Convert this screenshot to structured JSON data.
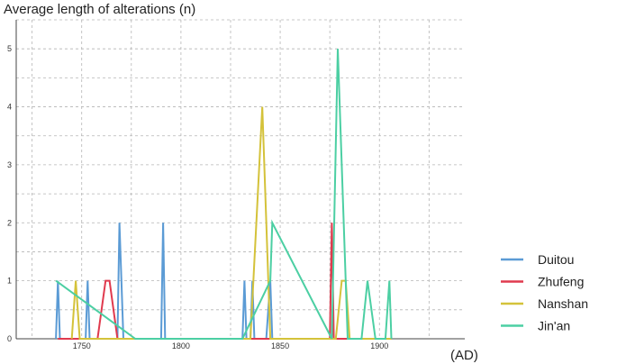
{
  "chart_data": {
    "type": "line",
    "title": "",
    "ylabel": "Average length of alterations  (n)",
    "xlabel": "(AD)",
    "xlim": [
      1717,
      1943
    ],
    "ylim": [
      0,
      5.5
    ],
    "x_ticks": [
      1750,
      1800,
      1850,
      1900
    ],
    "y_ticks": [
      0,
      1,
      2,
      3,
      4,
      5
    ],
    "grid": true,
    "legend_position": "right",
    "series": [
      {
        "name": "Duitou",
        "color": "#5b9bd5",
        "points": [
          [
            1737,
            0
          ],
          [
            1738,
            1
          ],
          [
            1739,
            0
          ],
          [
            1752,
            0
          ],
          [
            1753,
            1
          ],
          [
            1754,
            0
          ],
          [
            1768,
            0
          ],
          [
            1769,
            2
          ],
          [
            1771,
            0
          ],
          [
            1790,
            0
          ],
          [
            1791,
            2
          ],
          [
            1792,
            0
          ],
          [
            1831,
            0
          ],
          [
            1832,
            1
          ],
          [
            1833,
            0
          ],
          [
            1835,
            0
          ],
          [
            1836,
            1
          ],
          [
            1837,
            0
          ],
          [
            1843,
            0
          ],
          [
            1845,
            1
          ],
          [
            1846,
            0
          ],
          [
            1870,
            0
          ]
        ]
      },
      {
        "name": "Zhufeng",
        "color": "#e03a4e",
        "points": [
          [
            1738,
            0
          ],
          [
            1758,
            0
          ],
          [
            1762,
            1
          ],
          [
            1764,
            1
          ],
          [
            1768,
            0
          ],
          [
            1873,
            0
          ],
          [
            1875,
            0
          ],
          [
            1876,
            2
          ],
          [
            1877,
            0
          ],
          [
            1900,
            0
          ]
        ]
      },
      {
        "name": "Nanshan",
        "color": "#d4c23a",
        "points": [
          [
            1745,
            0
          ],
          [
            1747,
            1
          ],
          [
            1749,
            0
          ],
          [
            1835,
            0
          ],
          [
            1841,
            4
          ],
          [
            1845,
            0
          ],
          [
            1878,
            0
          ],
          [
            1881,
            1
          ],
          [
            1883,
            1
          ],
          [
            1885,
            0
          ],
          [
            1906,
            0
          ]
        ]
      },
      {
        "name": "Jin'an",
        "color": "#4ccfa3",
        "points": [
          [
            1737,
            1
          ],
          [
            1777,
            0
          ],
          [
            1831,
            0
          ],
          [
            1845,
            1
          ],
          [
            1846,
            2
          ],
          [
            1876,
            0
          ],
          [
            1879,
            5
          ],
          [
            1884,
            0
          ],
          [
            1891,
            0
          ],
          [
            1894,
            1
          ],
          [
            1898,
            0
          ],
          [
            1903,
            0
          ],
          [
            1905,
            1
          ],
          [
            1906,
            0
          ]
        ]
      }
    ]
  }
}
